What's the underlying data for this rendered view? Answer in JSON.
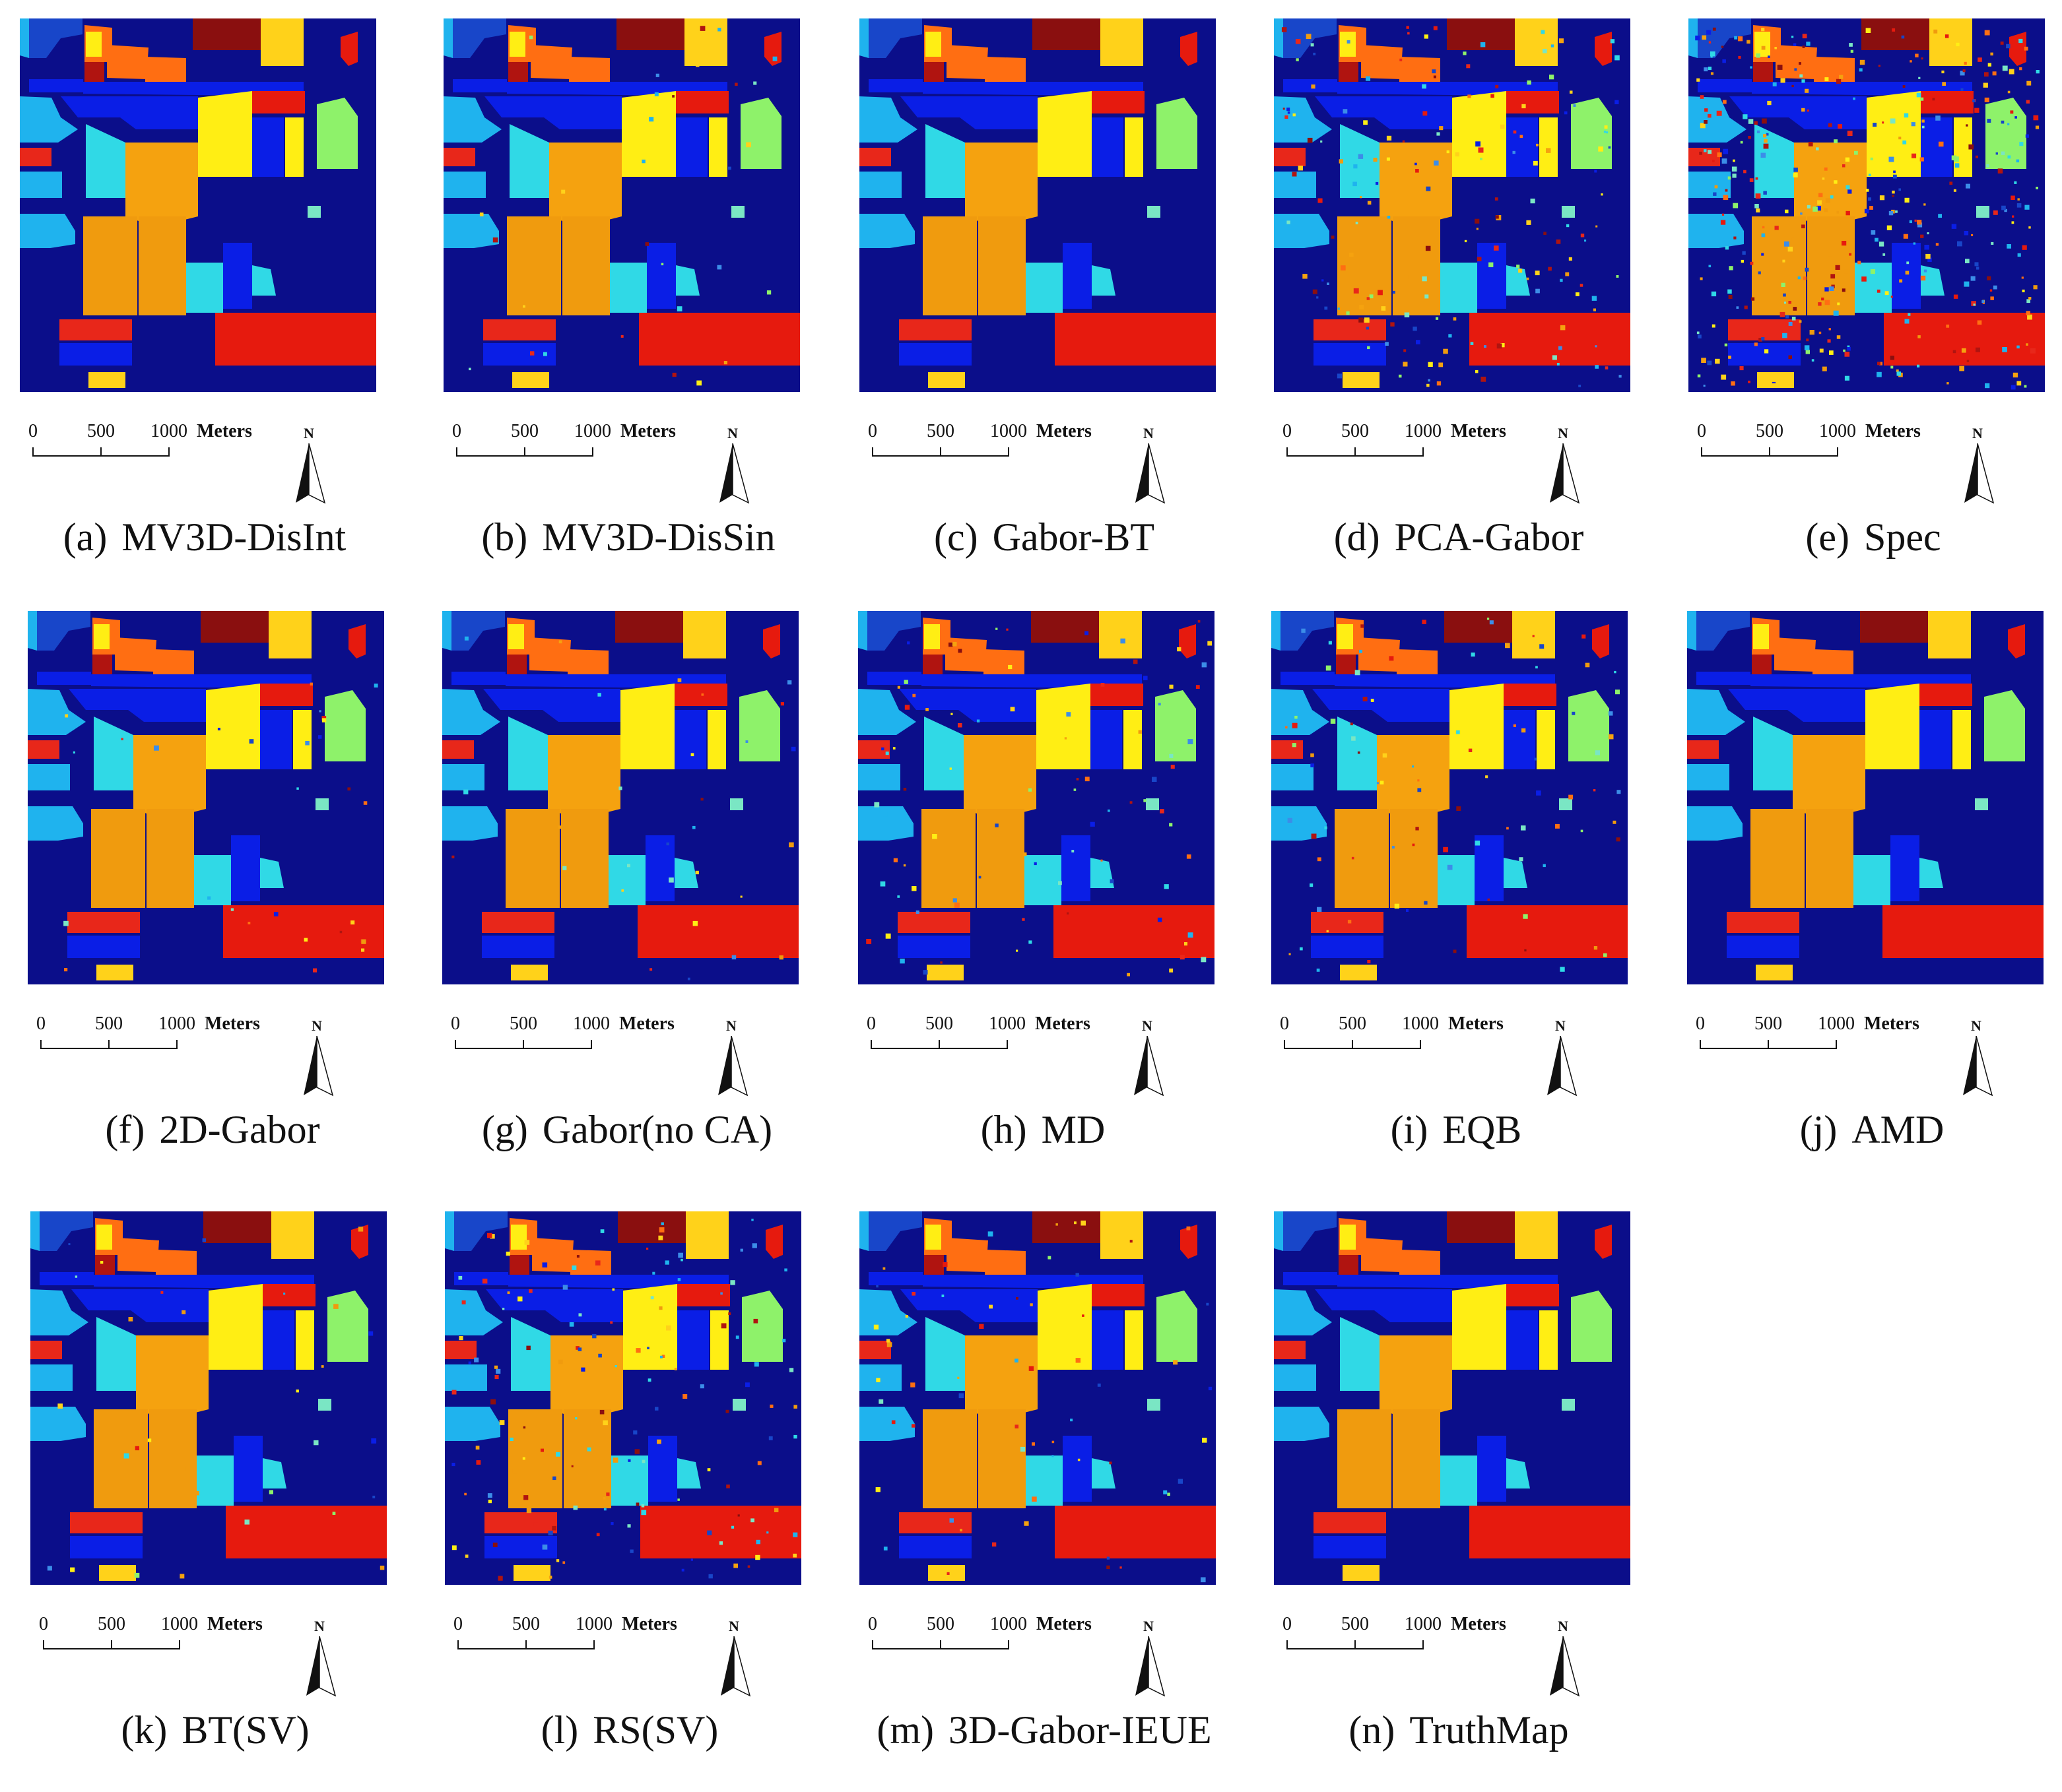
{
  "colors": {
    "background": "#0b0e8a",
    "alfalfa": "#1846c9",
    "corn_notill": "#f5a20f",
    "corn_min": "#ff6e12",
    "corn": "#ffd21a",
    "grass_pasture": "#30d9e6",
    "grass_trees": "#1fb3ee",
    "grass_mowed": "#7ae6c4",
    "hay_windrowed": "#ffee14",
    "soybean_notill": "#0a1ee6",
    "soybean_min": "#f09b0e",
    "soybean_clean": "#e8271a",
    "wheat": "#3c8de8",
    "woods": "#e61a0e",
    "buildings": "#8ef26a",
    "stone_steel": "#b01410",
    "oats": "#8a0f0f"
  },
  "scale_bar": {
    "ticks": [
      "0",
      "500",
      "1000"
    ],
    "units": "Meters"
  },
  "north_label": "N",
  "panels": [
    {
      "letter": "(a)",
      "method": "MV3D-DisInt",
      "noise": 0.0
    },
    {
      "letter": "(b)",
      "method": "MV3D-DisSin",
      "noise": 0.01
    },
    {
      "letter": "(c)",
      "method": "Gabor-BT",
      "noise": 0.0
    },
    {
      "letter": "(d)",
      "method": "PCA-Gabor",
      "noise": 0.06
    },
    {
      "letter": "(e)",
      "method": "Spec",
      "noise": 0.14
    },
    {
      "letter": "(f)",
      "method": "2D-Gabor",
      "noise": 0.01
    },
    {
      "letter": "(g)",
      "method": "Gabor(no CA)",
      "noise": 0.01
    },
    {
      "letter": "(h)",
      "method": "MD",
      "noise": 0.03
    },
    {
      "letter": "(i)",
      "method": "EQB",
      "noise": 0.03
    },
    {
      "letter": "(j)",
      "method": "AMD",
      "noise": 0.0
    },
    {
      "letter": "(k)",
      "method": "BT(SV)",
      "noise": 0.01
    },
    {
      "letter": "(l)",
      "method": "RS(SV)",
      "noise": 0.05
    },
    {
      "letter": "(m)",
      "method": "3D-Gabor-IEUE",
      "noise": 0.02
    },
    {
      "letter": "(n)",
      "method": "TruthMap",
      "noise": 0.0
    }
  ]
}
